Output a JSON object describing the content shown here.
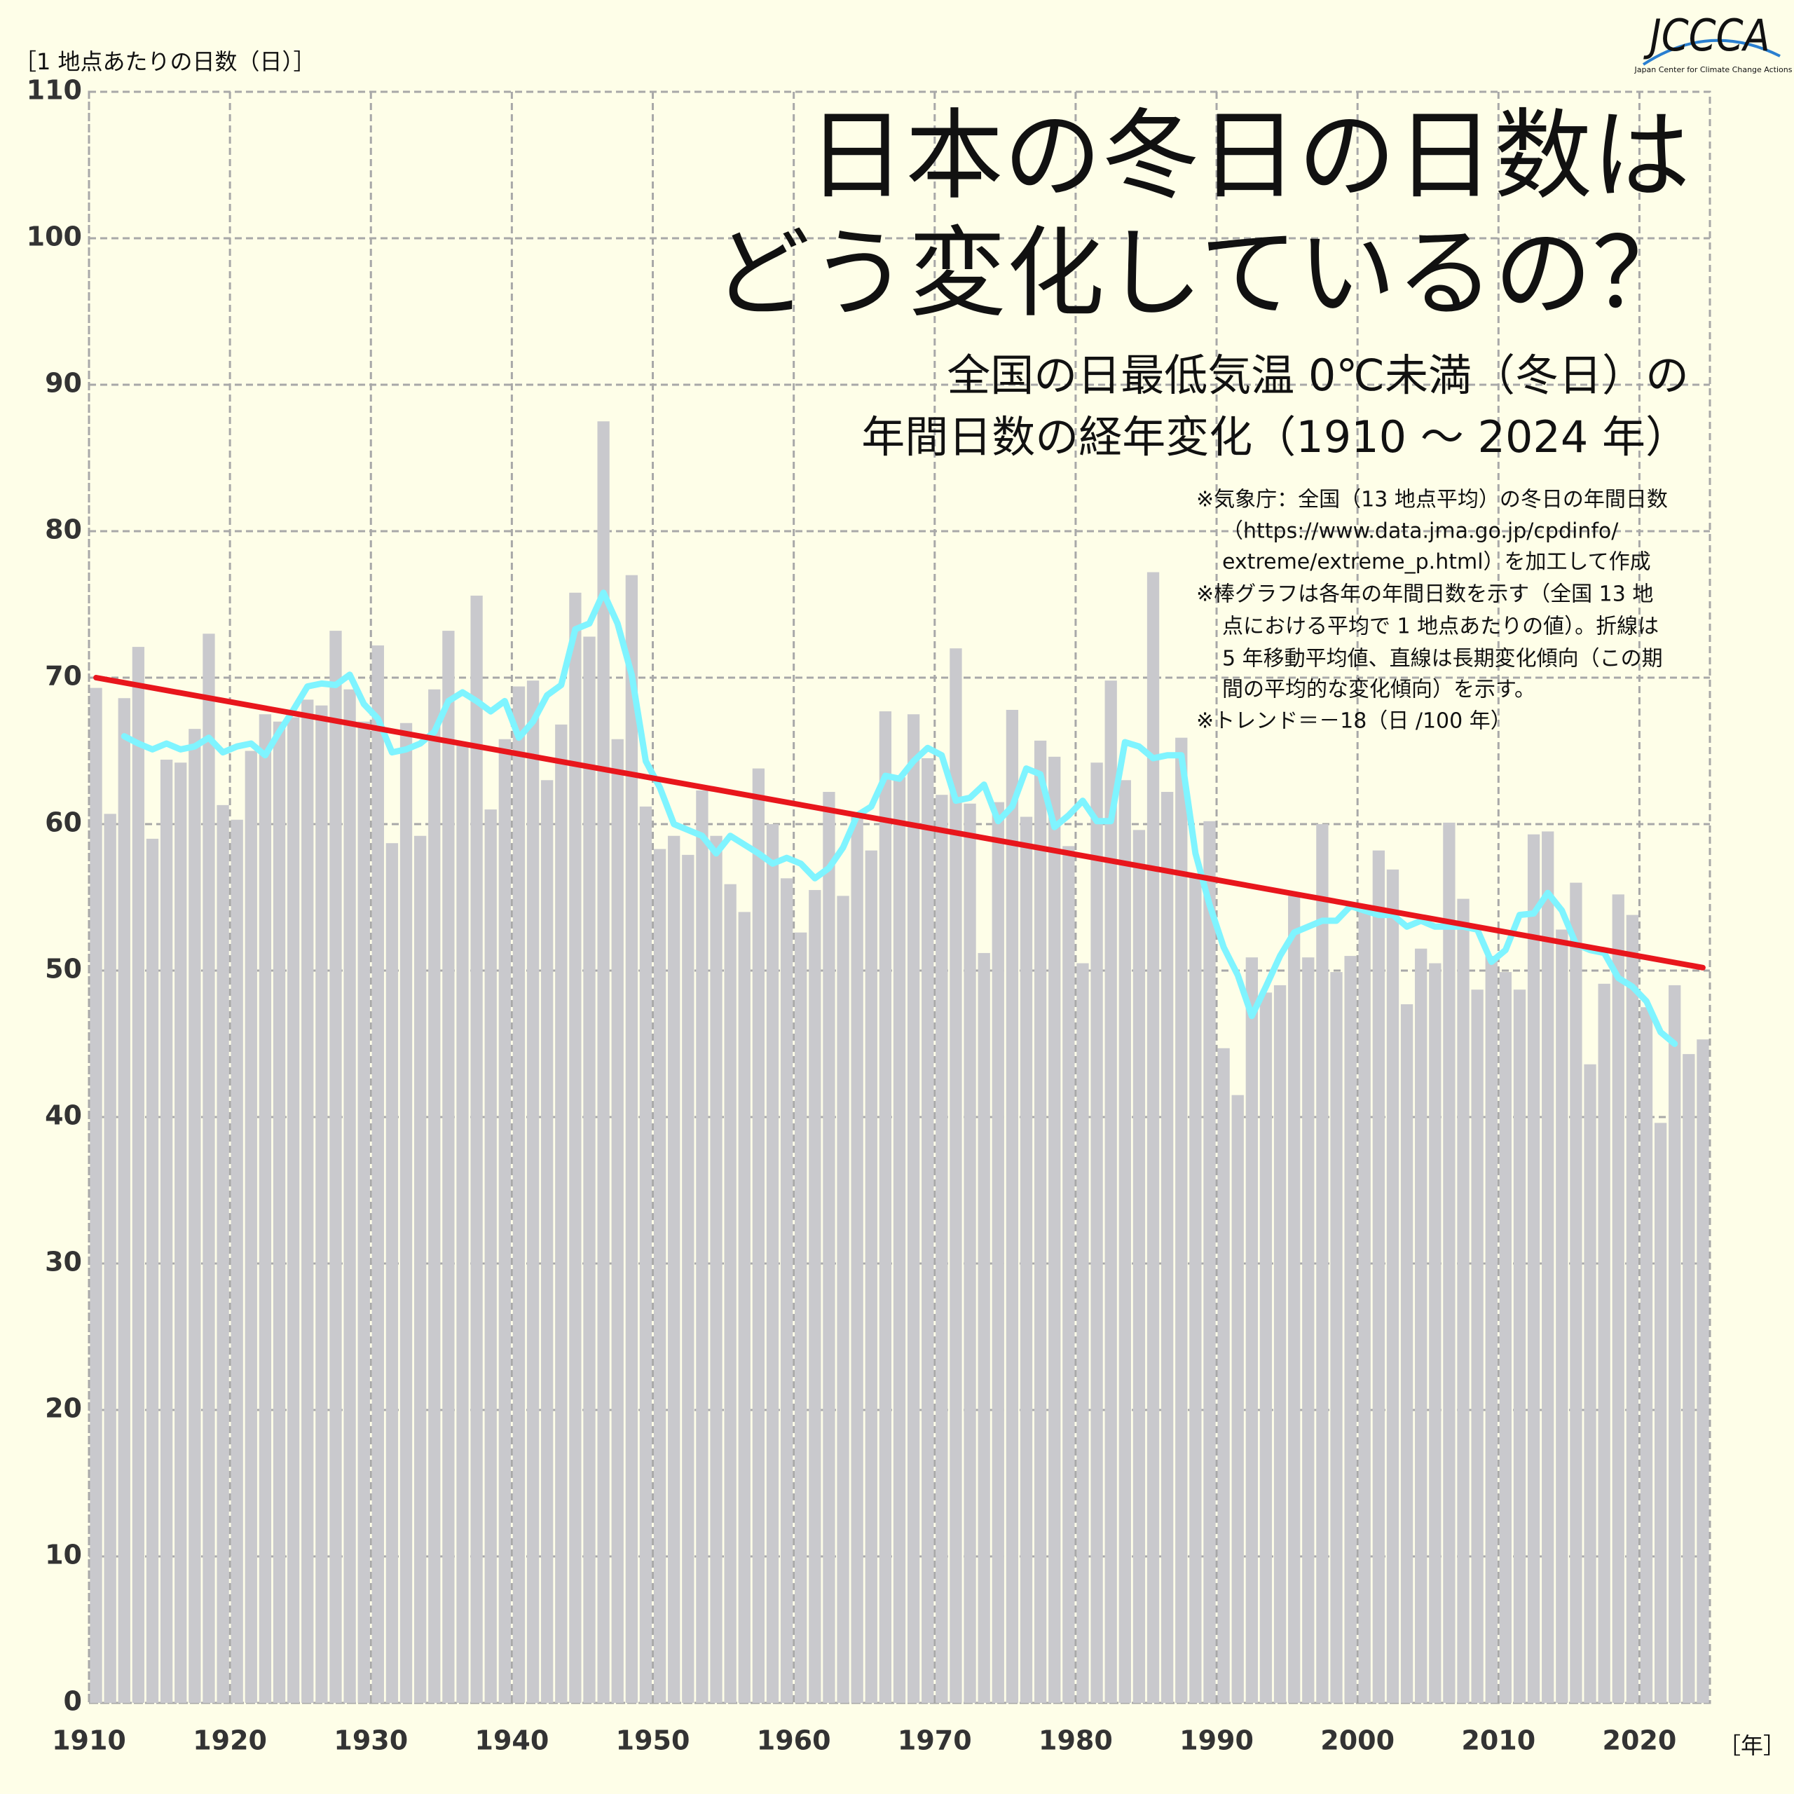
{
  "chart_data": {
    "type": "bar",
    "title": [
      "日本の冬日の日数は",
      "どう変化しているの？"
    ],
    "subtitle": [
      "全国の日最低気温 0℃未満（冬日）の",
      "年間日数の経年変化（1910 ～ 2024 年）"
    ],
    "notes": [
      "※気象庁：全国（13 地点平均）の冬日の年間日数",
      "（https://www.data.jma.go.jp/cpdinfo/",
      "extreme/extreme_p.html）を加工して作成",
      "※棒グラフは各年の年間日数を示す（全国 13 地",
      "点における平均で 1 地点あたりの値）。折線は",
      "5 年移動平均値、直線は長期変化傾向（この期",
      "間の平均的な変化傾向）を示す。",
      "※トレンド＝－18（日 /100 年）"
    ],
    "y_label": "［1 地点あたりの日数（日）］",
    "x_label": "［年］",
    "logo": {
      "text": "JCCCA",
      "subtext": "Japan Center for Climate Change Actions"
    },
    "x": [
      1910,
      1911,
      1912,
      1913,
      1914,
      1915,
      1916,
      1917,
      1918,
      1919,
      1920,
      1921,
      1922,
      1923,
      1924,
      1925,
      1926,
      1927,
      1928,
      1929,
      1930,
      1931,
      1932,
      1933,
      1934,
      1935,
      1936,
      1937,
      1938,
      1939,
      1940,
      1941,
      1942,
      1943,
      1944,
      1945,
      1946,
      1947,
      1948,
      1949,
      1950,
      1951,
      1952,
      1953,
      1954,
      1955,
      1956,
      1957,
      1958,
      1959,
      1960,
      1961,
      1962,
      1963,
      1964,
      1965,
      1966,
      1967,
      1968,
      1969,
      1970,
      1971,
      1972,
      1973,
      1974,
      1975,
      1976,
      1977,
      1978,
      1979,
      1980,
      1981,
      1982,
      1983,
      1984,
      1985,
      1986,
      1987,
      1988,
      1989,
      1990,
      1991,
      1992,
      1993,
      1994,
      1995,
      1996,
      1997,
      1998,
      1999,
      2000,
      2001,
      2002,
      2003,
      2004,
      2005,
      2006,
      2007,
      2008,
      2009,
      2010,
      2011,
      2012,
      2013,
      2014,
      2015,
      2016,
      2017,
      2018,
      2019,
      2020,
      2021,
      2022,
      2023,
      2024
    ],
    "bars": {
      "color": "#c9c9cd",
      "values": [
        69.3,
        60.7,
        68.6,
        72.1,
        59.0,
        64.4,
        64.2,
        66.5,
        73.0,
        61.3,
        60.3,
        65.0,
        67.5,
        67.0,
        67.3,
        68.5,
        68.1,
        73.2,
        69.2,
        67.0,
        72.2,
        58.7,
        66.9,
        59.2,
        69.2,
        73.2,
        65.5,
        75.6,
        61.0,
        65.8,
        69.4,
        69.8,
        63.0,
        66.8,
        75.8,
        72.8,
        87.5,
        65.8,
        77.0,
        61.2,
        58.3,
        59.2,
        57.9,
        62.3,
        59.2,
        55.9,
        54.0,
        63.8,
        60.0,
        56.3,
        52.6,
        55.5,
        62.2,
        55.1,
        60.5,
        58.2,
        67.7,
        63.2,
        67.5,
        64.5,
        62.0,
        72.0,
        61.4,
        51.2,
        61.5,
        67.8,
        60.5,
        65.7,
        64.6,
        58.5,
        50.5,
        64.2,
        69.8,
        63.0,
        59.6,
        77.2,
        62.2,
        65.9,
        56.5,
        60.2,
        44.7,
        41.5,
        50.9,
        48.5,
        49.0,
        55.1,
        50.9,
        60.0,
        49.9,
        51.0,
        54.5,
        58.2,
        56.9,
        47.7,
        51.5,
        50.5,
        60.1,
        54.9,
        48.7,
        51.0,
        49.9,
        48.7,
        59.3,
        59.5,
        52.8,
        56.0,
        43.6,
        49.1,
        55.2,
        53.8,
        47.5,
        39.6,
        49.0,
        44.3,
        45.3
      ]
    },
    "moving_average": {
      "color": "#7ff4ff",
      "values": [
        null,
        null,
        66.0,
        65.5,
        65.1,
        65.5,
        65.1,
        65.3,
        65.9,
        64.9,
        65.3,
        65.5,
        64.7,
        66.3,
        67.8,
        69.4,
        69.6,
        69.5,
        70.2,
        68.2,
        67.2,
        64.9,
        65.1,
        65.5,
        66.3,
        68.4,
        69.0,
        68.4,
        67.7,
        68.4,
        65.9,
        67.0,
        68.8,
        69.5,
        73.3,
        73.7,
        75.8,
        73.7,
        70.2,
        64.3,
        62.5,
        60.0,
        59.6,
        59.2,
        58.0,
        59.2,
        58.6,
        58.0,
        57.3,
        57.7,
        57.3,
        56.3,
        57.0,
        58.4,
        60.6,
        61.2,
        63.3,
        63.1,
        64.3,
        65.2,
        64.7,
        61.6,
        61.8,
        62.7,
        60.2,
        61.2,
        63.8,
        63.4,
        59.8,
        60.6,
        61.6,
        60.2,
        60.2,
        65.6,
        65.3,
        64.5,
        64.7,
        64.7,
        58.0,
        54.5,
        51.6,
        49.7,
        46.9,
        48.9,
        51.0,
        52.6,
        53.0,
        53.4,
        53.4,
        54.4,
        54.1,
        53.8,
        53.8,
        53.0,
        53.4,
        53.0,
        53.0,
        53.0,
        52.8,
        50.6,
        51.4,
        53.8,
        53.9,
        55.3,
        54.1,
        51.8,
        51.4,
        51.2,
        49.5,
        48.9,
        47.9,
        45.8,
        45.0,
        null,
        null
      ]
    },
    "trend": {
      "color": "#e8161c",
      "x": [
        1910,
        2024
      ],
      "values": [
        70.0,
        50.2
      ]
    },
    "xlim": [
      1910,
      2025
    ],
    "ylim": [
      0,
      110
    ],
    "xticks": [
      1910,
      1920,
      1930,
      1940,
      1950,
      1960,
      1970,
      1980,
      1990,
      2000,
      2010,
      2020
    ],
    "yticks": [
      0,
      10,
      20,
      30,
      40,
      50,
      60,
      70,
      80,
      90,
      100,
      110
    ],
    "grid": true
  }
}
